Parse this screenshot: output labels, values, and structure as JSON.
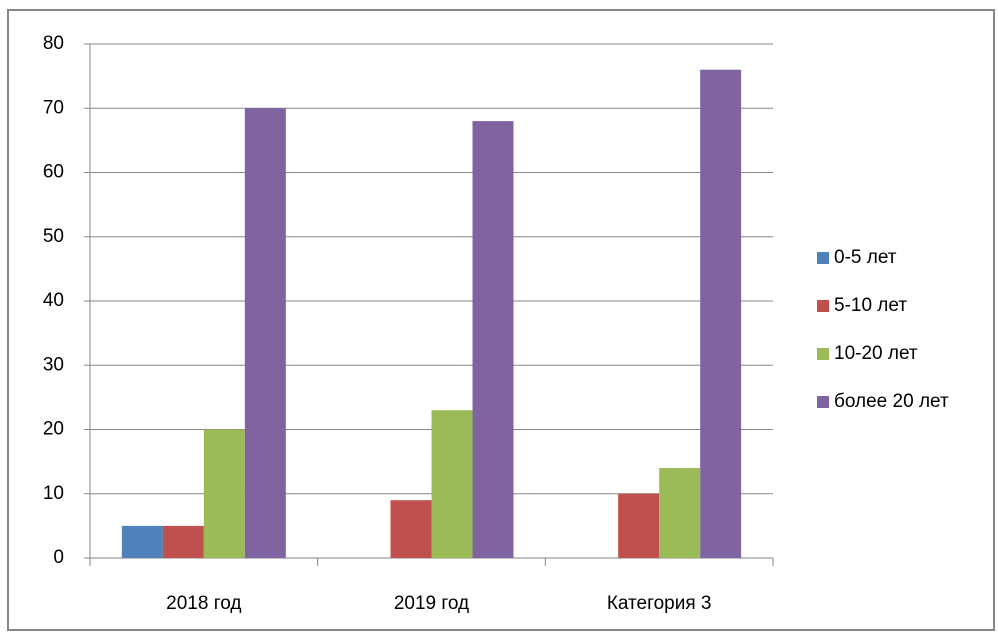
{
  "chart_data": {
    "type": "bar",
    "categories": [
      "2018 год",
      "2019 год",
      "Категория 3"
    ],
    "series": [
      {
        "name": "0-5 лет",
        "color": "#4f81bd",
        "values": [
          5,
          0,
          0
        ]
      },
      {
        "name": "5-10 лет",
        "color": "#c0504d",
        "values": [
          5,
          9,
          10
        ]
      },
      {
        "name": "10-20 лет",
        "color": "#9bbb59",
        "values": [
          20,
          23,
          14
        ]
      },
      {
        "name": "более 20 лет",
        "color": "#8064a2",
        "values": [
          70,
          68,
          76
        ]
      }
    ],
    "ylim": [
      0,
      80
    ],
    "yticks": [
      0,
      10,
      20,
      30,
      40,
      50,
      60,
      70,
      80
    ],
    "grid": true,
    "legend": "right"
  }
}
